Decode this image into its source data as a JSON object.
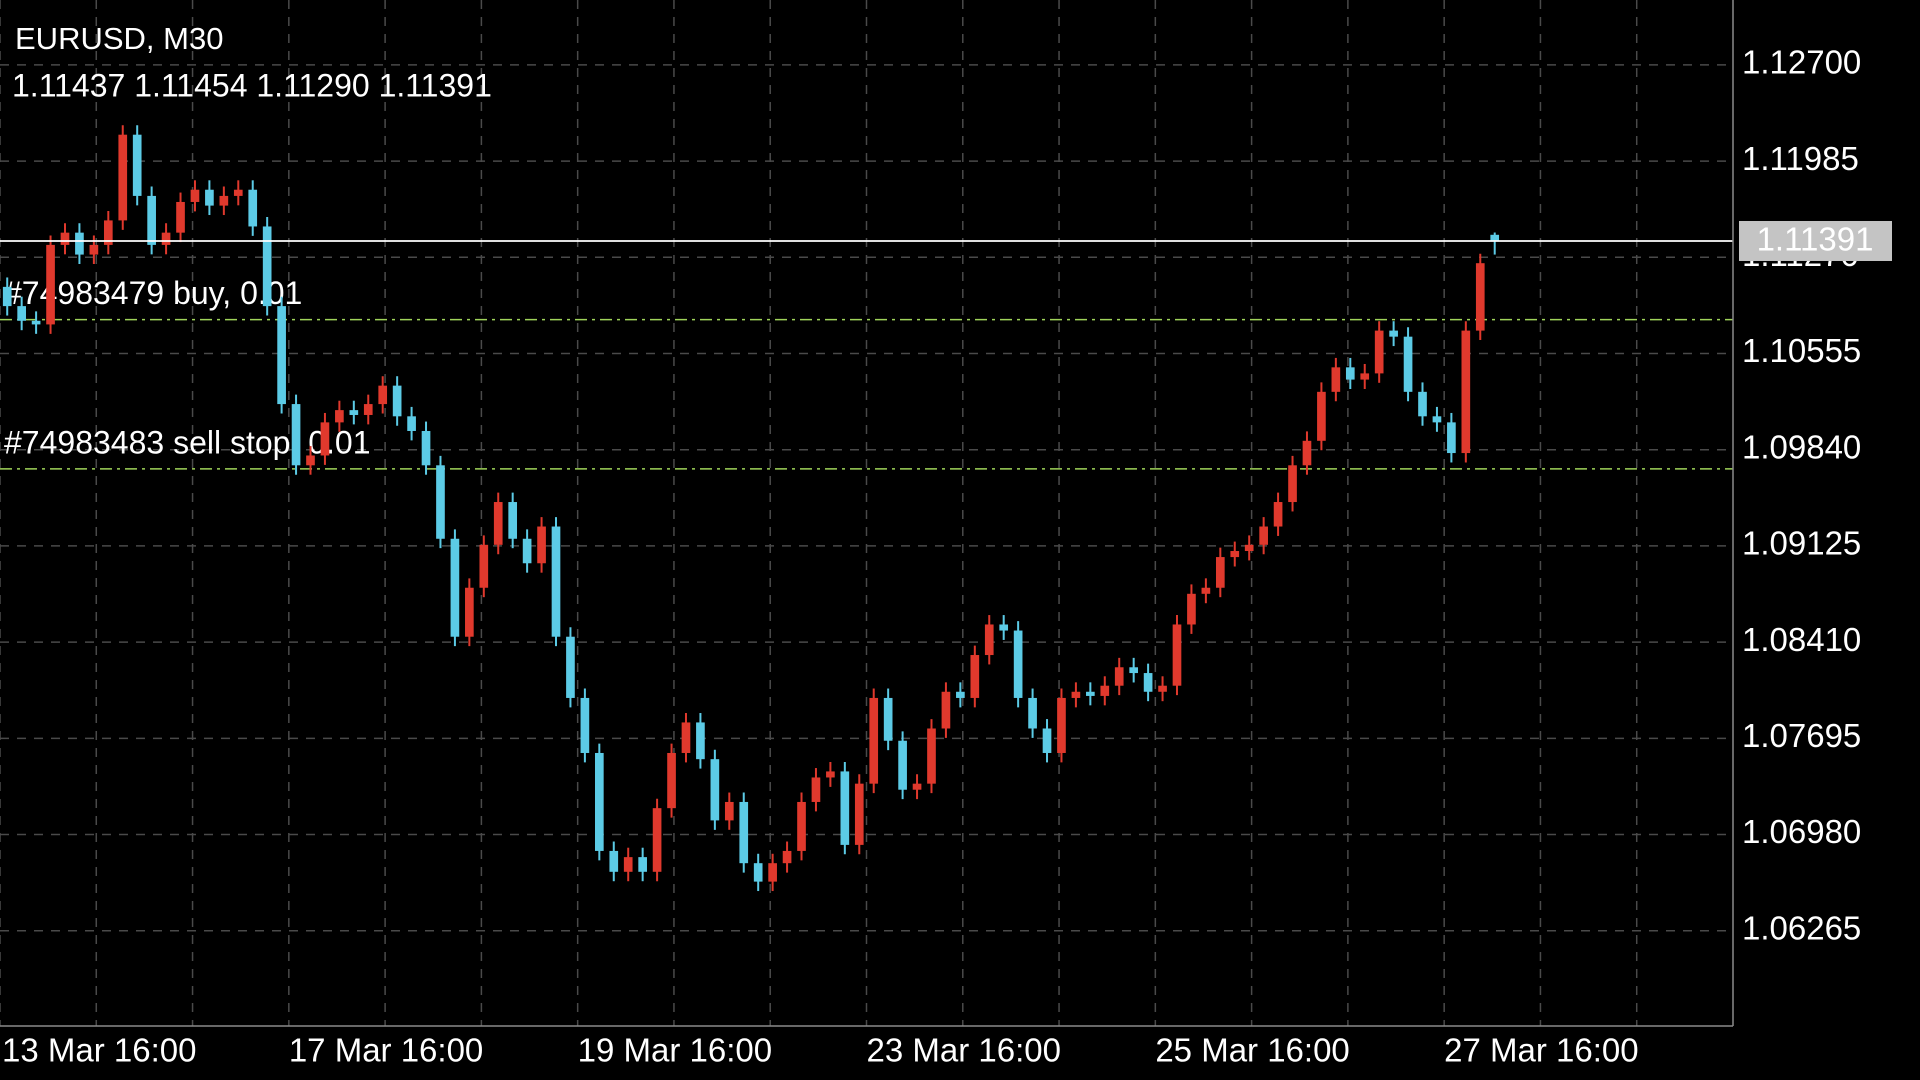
{
  "chart_data": {
    "type": "candlestick",
    "title": "EURUSD, M30",
    "subtitle": "1.11437 1.11454 1.11290 1.11391",
    "up_color": "#e0392d",
    "down_color": "#5ccbe6",
    "grid": true,
    "open": [
      1.1105,
      1.10907,
      1.10798,
      1.10771,
      1.11362,
      1.11453,
      1.1129,
      1.11362,
      1.11544,
      1.12181,
      1.11726,
      1.11362,
      1.11453,
      1.11681,
      1.11772,
      1.11654,
      1.11726,
      1.11772,
      1.11499,
      1.10907,
      1.10179,
      1.09724,
      1.09797,
      1.10043,
      1.10134,
      1.10098,
      1.10179,
      1.10316,
      1.10088,
      1.09979,
      1.09724,
      1.09178,
      1.0845,
      1.08814,
      1.09133,
      1.09451,
      1.09178,
      1.08996,
      1.09269,
      1.0845,
      1.07995,
      1.07586,
      1.06858,
      1.06703,
      1.06812,
      1.06703,
      1.07176,
      1.07586,
      1.07813,
      1.0754,
      1.07085,
      1.07222,
      1.06767,
      1.0663,
      1.06767,
      1.06858,
      1.07222,
      1.07404,
      1.07449,
      1.06903,
      1.07358,
      1.07995,
      1.07677,
      1.07313,
      1.07358,
      1.07768,
      1.08041,
      1.07995,
      1.08314,
      1.08541,
      1.08496,
      1.07995,
      1.07768,
      1.07586,
      1.07995,
      1.08041,
      1.0801,
      1.08086,
      1.08223,
      1.0818,
      1.08041,
      1.08086,
      1.08541,
      1.08769,
      1.08814,
      1.09042,
      1.09087,
      1.09133,
      1.09269,
      1.09451,
      1.09724,
      1.09906,
      1.1027,
      1.10452,
      1.10361,
      1.10407,
      1.10725,
      1.1068,
      1.1027,
      1.10088,
      1.10043,
      1.09815,
      1.10725,
      1.11437
    ],
    "high": [
      1.1112,
      1.10977,
      1.10868,
      1.11432,
      1.11523,
      1.11523,
      1.11432,
      1.11614,
      1.12251,
      1.12251,
      1.11796,
      1.11523,
      1.11751,
      1.11842,
      1.11842,
      1.11796,
      1.11842,
      1.11842,
      1.11569,
      1.10977,
      1.10249,
      1.09867,
      1.10113,
      1.10204,
      1.10204,
      1.10249,
      1.10386,
      1.10386,
      1.10158,
      1.10049,
      1.09794,
      1.09248,
      1.08884,
      1.09203,
      1.09521,
      1.09521,
      1.09248,
      1.09339,
      1.09339,
      1.0852,
      1.08065,
      1.07656,
      1.06928,
      1.06882,
      1.06882,
      1.07246,
      1.07656,
      1.07883,
      1.07883,
      1.0761,
      1.07292,
      1.07292,
      1.06837,
      1.06837,
      1.06928,
      1.07292,
      1.07474,
      1.07519,
      1.07519,
      1.07428,
      1.08065,
      1.08065,
      1.07747,
      1.07428,
      1.07838,
      1.08111,
      1.08111,
      1.08384,
      1.08611,
      1.08611,
      1.08566,
      1.08065,
      1.07838,
      1.08065,
      1.08111,
      1.08111,
      1.08156,
      1.08293,
      1.08293,
      1.0825,
      1.08156,
      1.08611,
      1.08839,
      1.08884,
      1.09112,
      1.09157,
      1.09203,
      1.09339,
      1.09521,
      1.09794,
      1.09976,
      1.1034,
      1.10522,
      1.10522,
      1.10477,
      1.10795,
      1.10795,
      1.1075,
      1.1034,
      1.10158,
      1.10113,
      1.10795,
      1.11296,
      1.11454
    ],
    "low": [
      1.10837,
      1.10728,
      1.10701,
      1.10701,
      1.11292,
      1.1122,
      1.1122,
      1.11292,
      1.11474,
      1.11656,
      1.11292,
      1.11292,
      1.11383,
      1.11611,
      1.11584,
      1.11584,
      1.11656,
      1.11429,
      1.10837,
      1.10109,
      1.09654,
      1.09654,
      1.09727,
      1.09973,
      1.10028,
      1.10028,
      1.10109,
      1.10018,
      1.09909,
      1.09654,
      1.09108,
      1.0838,
      1.0838,
      1.08744,
      1.09063,
      1.09108,
      1.08926,
      1.08926,
      1.0838,
      1.07925,
      1.07516,
      1.06788,
      1.06633,
      1.06633,
      1.06633,
      1.06633,
      1.07106,
      1.07516,
      1.0747,
      1.07015,
      1.07015,
      1.06697,
      1.0656,
      1.0656,
      1.06697,
      1.06788,
      1.07152,
      1.07334,
      1.06833,
      1.06833,
      1.07288,
      1.07607,
      1.07243,
      1.07243,
      1.07288,
      1.07698,
      1.07925,
      1.07925,
      1.08244,
      1.08426,
      1.07925,
      1.07698,
      1.07516,
      1.07516,
      1.07925,
      1.0794,
      1.0794,
      1.08016,
      1.0811,
      1.07971,
      1.07971,
      1.08016,
      1.08471,
      1.08699,
      1.08744,
      1.08972,
      1.09017,
      1.09063,
      1.09199,
      1.09381,
      1.09654,
      1.09836,
      1.102,
      1.10291,
      1.10291,
      1.10337,
      1.1061,
      1.102,
      1.10018,
      1.09973,
      1.09745,
      1.09745,
      1.10655,
      1.1129
    ],
    "close": [
      1.10907,
      1.10798,
      1.10771,
      1.11362,
      1.11453,
      1.1129,
      1.11362,
      1.11544,
      1.12181,
      1.11726,
      1.11362,
      1.11453,
      1.11681,
      1.11772,
      1.11654,
      1.11726,
      1.11772,
      1.11499,
      1.10907,
      1.10179,
      1.09724,
      1.09797,
      1.10043,
      1.10134,
      1.10098,
      1.10179,
      1.10316,
      1.10088,
      1.09979,
      1.09724,
      1.09178,
      1.0845,
      1.08814,
      1.09133,
      1.09451,
      1.09178,
      1.08996,
      1.09269,
      1.0845,
      1.07995,
      1.07586,
      1.06858,
      1.06703,
      1.06812,
      1.06703,
      1.07176,
      1.07586,
      1.07813,
      1.0754,
      1.07085,
      1.07222,
      1.06767,
      1.0663,
      1.06767,
      1.06858,
      1.07222,
      1.07404,
      1.07449,
      1.06903,
      1.07358,
      1.07995,
      1.07677,
      1.07313,
      1.07358,
      1.07768,
      1.08041,
      1.07995,
      1.08314,
      1.08541,
      1.08496,
      1.07995,
      1.07768,
      1.07586,
      1.07995,
      1.08041,
      1.0801,
      1.08086,
      1.08223,
      1.0818,
      1.08041,
      1.08086,
      1.08541,
      1.08769,
      1.08814,
      1.09042,
      1.09087,
      1.09133,
      1.09269,
      1.09451,
      1.09724,
      1.09906,
      1.1027,
      1.10452,
      1.10361,
      1.10407,
      1.10725,
      1.1068,
      1.1027,
      1.10088,
      1.10043,
      1.09815,
      1.10725,
      1.11226,
      1.11391
    ],
    "xlim": [
      0,
      120
    ],
    "xticks": [
      {
        "value": 0,
        "label": "13 Mar 16:00"
      },
      {
        "value": 20,
        "label": "17 Mar 16:00"
      },
      {
        "value": 40,
        "label": "19 Mar 16:00"
      },
      {
        "value": 60,
        "label": "23 Mar 16:00"
      },
      {
        "value": 80,
        "label": "25 Mar 16:00"
      },
      {
        "value": 100,
        "label": "27 Mar 16:00"
      }
    ],
    "ylim": [
      1.05557,
      1.13182
    ],
    "yticks": [
      {
        "value": 1.127,
        "label": "1.12700"
      },
      1.11985,
      {
        "value": 1.1127,
        "label": "1.11270"
      },
      1.10555,
      {
        "value": 1.0984,
        "label": "1.09840"
      },
      1.09125,
      {
        "value": 1.0841,
        "label": "1.08410"
      },
      1.07695,
      {
        "value": 1.0698,
        "label": "1.06980"
      },
      1.06265
    ],
    "current_price": 1.11391,
    "current_price_color": "#c4c4c4",
    "order_color": "#9fd35a",
    "orders": [
      {
        "label": "#74983479 buy, 0.01",
        "price": 1.10807
      },
      {
        "label": "#74983483 sell stop, 0.01",
        "price": 1.09697
      }
    ]
  }
}
